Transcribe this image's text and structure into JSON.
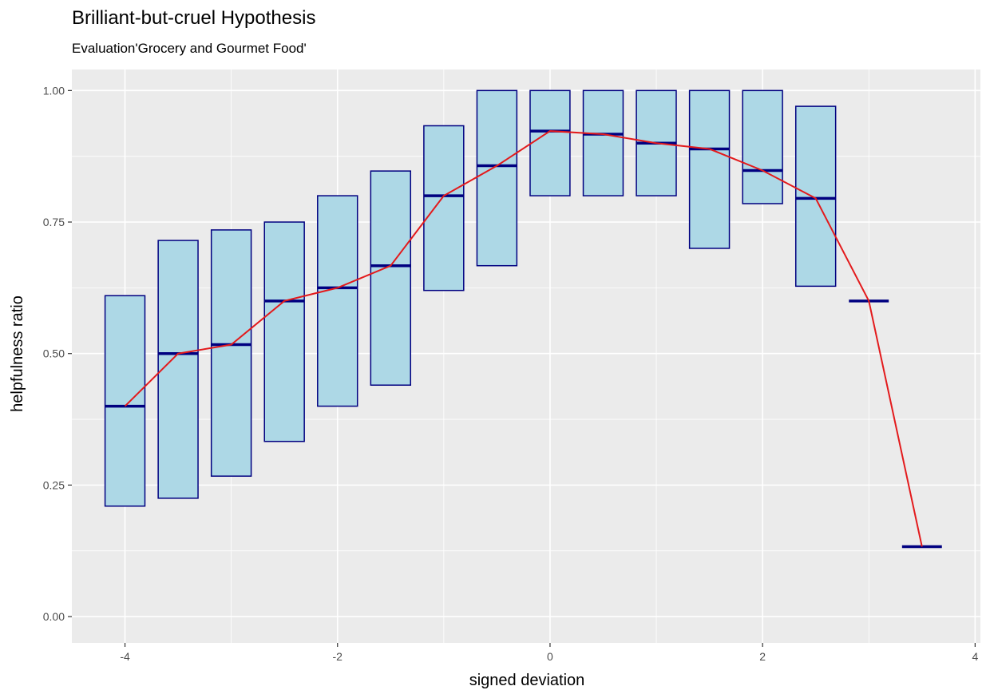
{
  "chart_data": {
    "type": "boxplot",
    "title": "Brilliant-but-cruel Hypothesis",
    "subtitle": "Evaluation'Grocery and Gourmet Food'",
    "xlabel": "signed deviation",
    "ylabel": "helpfulness ratio",
    "xlim": [
      -4.5,
      4.05
    ],
    "ylim": [
      -0.05,
      1.04
    ],
    "x_ticks": [
      -4,
      -2,
      0,
      2,
      4
    ],
    "x_tick_labels": [
      "-4",
      "-2",
      "0",
      "2",
      "4"
    ],
    "y_ticks": [
      0,
      0.25,
      0.5,
      0.75,
      1
    ],
    "y_tick_labels": [
      "0.00",
      "0.25",
      "0.50",
      "0.75",
      "1.00"
    ],
    "grid": true,
    "box_width": 0.375,
    "colors": {
      "panel_background": "#ebebeb",
      "grid": "#ffffff",
      "box_fill": "#add8e6",
      "box_border": "#000080",
      "trend_line": "#e31a1c",
      "tick_text": "#4d4d4d"
    },
    "boxes": [
      {
        "x": -4.0,
        "q1": 0.21,
        "median": 0.4,
        "q3": 0.61
      },
      {
        "x": -3.5,
        "q1": 0.225,
        "median": 0.5,
        "q3": 0.715
      },
      {
        "x": -3.0,
        "q1": 0.267,
        "median": 0.517,
        "q3": 0.735
      },
      {
        "x": -2.5,
        "q1": 0.333,
        "median": 0.6,
        "q3": 0.75
      },
      {
        "x": -2.0,
        "q1": 0.4,
        "median": 0.625,
        "q3": 0.8
      },
      {
        "x": -1.5,
        "q1": 0.44,
        "median": 0.667,
        "q3": 0.847
      },
      {
        "x": -1.0,
        "q1": 0.62,
        "median": 0.8,
        "q3": 0.933
      },
      {
        "x": -0.5,
        "q1": 0.667,
        "median": 0.857,
        "q3": 1.0
      },
      {
        "x": 0.0,
        "q1": 0.8,
        "median": 0.923,
        "q3": 1.0
      },
      {
        "x": 0.5,
        "q1": 0.8,
        "median": 0.917,
        "q3": 1.0
      },
      {
        "x": 1.0,
        "q1": 0.8,
        "median": 0.9,
        "q3": 1.0
      },
      {
        "x": 1.5,
        "q1": 0.7,
        "median": 0.889,
        "q3": 1.0
      },
      {
        "x": 2.0,
        "q1": 0.785,
        "median": 0.848,
        "q3": 1.0
      },
      {
        "x": 2.5,
        "q1": 0.628,
        "median": 0.795,
        "q3": 0.97
      },
      {
        "x": 3.0,
        "q1": 0.6,
        "median": 0.6,
        "q3": 0.6
      },
      {
        "x": 3.5,
        "q1": 0.133,
        "median": 0.133,
        "q3": 0.133
      }
    ],
    "trend_line": {
      "x": [
        -4.0,
        -3.5,
        -3.0,
        -2.5,
        -2.0,
        -1.5,
        -1.0,
        -0.5,
        0.0,
        0.5,
        1.0,
        1.5,
        2.0,
        2.5,
        3.0,
        3.5
      ],
      "y": [
        0.4,
        0.5,
        0.517,
        0.6,
        0.625,
        0.667,
        0.8,
        0.857,
        0.923,
        0.917,
        0.9,
        0.889,
        0.848,
        0.795,
        0.6,
        0.133
      ]
    }
  }
}
